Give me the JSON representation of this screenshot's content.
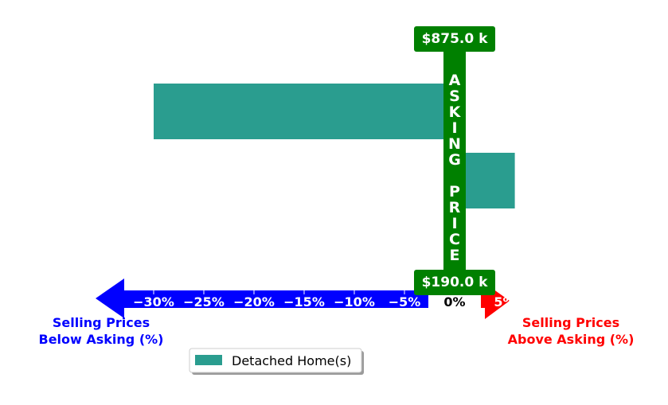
{
  "chart_data": {
    "type": "bar",
    "orientation": "horizontal",
    "series": [
      {
        "name": "Detached Home(s)",
        "color": "#2a9d8f",
        "values": [
          -30,
          6
        ]
      }
    ],
    "xlim": [
      -36,
      6
    ],
    "x_ticks": [
      {
        "value": -30,
        "label": "−30%"
      },
      {
        "value": -25,
        "label": "−25%"
      },
      {
        "value": -20,
        "label": "−20%"
      },
      {
        "value": -15,
        "label": "−15%"
      },
      {
        "value": -10,
        "label": "−10%"
      },
      {
        "value": -5,
        "label": "−5%"
      },
      {
        "value": 0,
        "label": "0%"
      },
      {
        "value": 5,
        "label": "5%"
      }
    ],
    "asking_price": {
      "top_label": "$875.0 k",
      "bottom_label": "$190.0 k",
      "vertical_text": "ASKING PRICE",
      "color": "#008000"
    },
    "left_label": [
      "Selling Prices",
      "Below Asking (%)"
    ],
    "right_label": [
      "Selling Prices",
      "Above Asking (%)"
    ],
    "left_color": "#0000ff",
    "right_color": "#ff0000",
    "legend": {
      "position": "bottom-center",
      "entries": [
        "Detached Home(s)"
      ]
    }
  }
}
